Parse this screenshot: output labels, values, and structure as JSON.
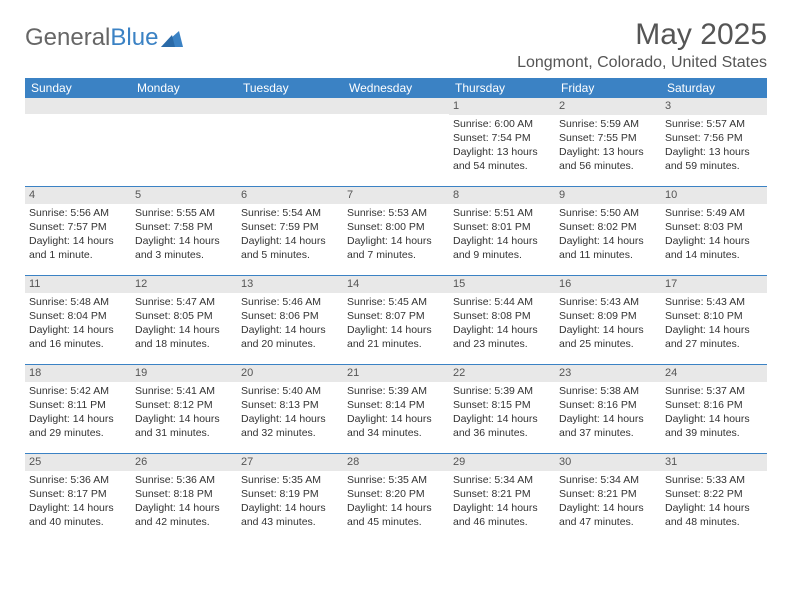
{
  "logo": {
    "text_gray": "General",
    "text_blue": "Blue"
  },
  "title": "May 2025",
  "location": "Longmont, Colorado, United States",
  "colors": {
    "header_bg": "#3b82c4",
    "header_text": "#ffffff",
    "daynum_bg": "#e8e8e8",
    "text": "#333333",
    "title_text": "#555555",
    "week_divider": "#3b82c4"
  },
  "typography": {
    "title_fontsize": 30,
    "location_fontsize": 16,
    "dayheader_fontsize": 12,
    "cell_fontsize": 10.5
  },
  "day_names": [
    "Sunday",
    "Monday",
    "Tuesday",
    "Wednesday",
    "Thursday",
    "Friday",
    "Saturday"
  ],
  "weeks": [
    [
      null,
      null,
      null,
      null,
      {
        "n": "1",
        "sunrise": "6:00 AM",
        "sunset": "7:54 PM",
        "daylight": "13 hours and 54 minutes."
      },
      {
        "n": "2",
        "sunrise": "5:59 AM",
        "sunset": "7:55 PM",
        "daylight": "13 hours and 56 minutes."
      },
      {
        "n": "3",
        "sunrise": "5:57 AM",
        "sunset": "7:56 PM",
        "daylight": "13 hours and 59 minutes."
      }
    ],
    [
      {
        "n": "4",
        "sunrise": "5:56 AM",
        "sunset": "7:57 PM",
        "daylight": "14 hours and 1 minute."
      },
      {
        "n": "5",
        "sunrise": "5:55 AM",
        "sunset": "7:58 PM",
        "daylight": "14 hours and 3 minutes."
      },
      {
        "n": "6",
        "sunrise": "5:54 AM",
        "sunset": "7:59 PM",
        "daylight": "14 hours and 5 minutes."
      },
      {
        "n": "7",
        "sunrise": "5:53 AM",
        "sunset": "8:00 PM",
        "daylight": "14 hours and 7 minutes."
      },
      {
        "n": "8",
        "sunrise": "5:51 AM",
        "sunset": "8:01 PM",
        "daylight": "14 hours and 9 minutes."
      },
      {
        "n": "9",
        "sunrise": "5:50 AM",
        "sunset": "8:02 PM",
        "daylight": "14 hours and 11 minutes."
      },
      {
        "n": "10",
        "sunrise": "5:49 AM",
        "sunset": "8:03 PM",
        "daylight": "14 hours and 14 minutes."
      }
    ],
    [
      {
        "n": "11",
        "sunrise": "5:48 AM",
        "sunset": "8:04 PM",
        "daylight": "14 hours and 16 minutes."
      },
      {
        "n": "12",
        "sunrise": "5:47 AM",
        "sunset": "8:05 PM",
        "daylight": "14 hours and 18 minutes."
      },
      {
        "n": "13",
        "sunrise": "5:46 AM",
        "sunset": "8:06 PM",
        "daylight": "14 hours and 20 minutes."
      },
      {
        "n": "14",
        "sunrise": "5:45 AM",
        "sunset": "8:07 PM",
        "daylight": "14 hours and 21 minutes."
      },
      {
        "n": "15",
        "sunrise": "5:44 AM",
        "sunset": "8:08 PM",
        "daylight": "14 hours and 23 minutes."
      },
      {
        "n": "16",
        "sunrise": "5:43 AM",
        "sunset": "8:09 PM",
        "daylight": "14 hours and 25 minutes."
      },
      {
        "n": "17",
        "sunrise": "5:43 AM",
        "sunset": "8:10 PM",
        "daylight": "14 hours and 27 minutes."
      }
    ],
    [
      {
        "n": "18",
        "sunrise": "5:42 AM",
        "sunset": "8:11 PM",
        "daylight": "14 hours and 29 minutes."
      },
      {
        "n": "19",
        "sunrise": "5:41 AM",
        "sunset": "8:12 PM",
        "daylight": "14 hours and 31 minutes."
      },
      {
        "n": "20",
        "sunrise": "5:40 AM",
        "sunset": "8:13 PM",
        "daylight": "14 hours and 32 minutes."
      },
      {
        "n": "21",
        "sunrise": "5:39 AM",
        "sunset": "8:14 PM",
        "daylight": "14 hours and 34 minutes."
      },
      {
        "n": "22",
        "sunrise": "5:39 AM",
        "sunset": "8:15 PM",
        "daylight": "14 hours and 36 minutes."
      },
      {
        "n": "23",
        "sunrise": "5:38 AM",
        "sunset": "8:16 PM",
        "daylight": "14 hours and 37 minutes."
      },
      {
        "n": "24",
        "sunrise": "5:37 AM",
        "sunset": "8:16 PM",
        "daylight": "14 hours and 39 minutes."
      }
    ],
    [
      {
        "n": "25",
        "sunrise": "5:36 AM",
        "sunset": "8:17 PM",
        "daylight": "14 hours and 40 minutes."
      },
      {
        "n": "26",
        "sunrise": "5:36 AM",
        "sunset": "8:18 PM",
        "daylight": "14 hours and 42 minutes."
      },
      {
        "n": "27",
        "sunrise": "5:35 AM",
        "sunset": "8:19 PM",
        "daylight": "14 hours and 43 minutes."
      },
      {
        "n": "28",
        "sunrise": "5:35 AM",
        "sunset": "8:20 PM",
        "daylight": "14 hours and 45 minutes."
      },
      {
        "n": "29",
        "sunrise": "5:34 AM",
        "sunset": "8:21 PM",
        "daylight": "14 hours and 46 minutes."
      },
      {
        "n": "30",
        "sunrise": "5:34 AM",
        "sunset": "8:21 PM",
        "daylight": "14 hours and 47 minutes."
      },
      {
        "n": "31",
        "sunrise": "5:33 AM",
        "sunset": "8:22 PM",
        "daylight": "14 hours and 48 minutes."
      }
    ]
  ]
}
